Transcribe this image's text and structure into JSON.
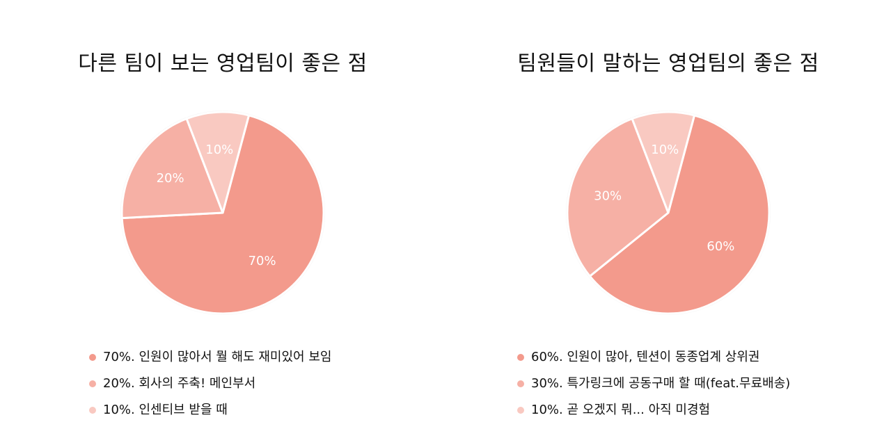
{
  "chart_data": [
    {
      "type": "pie",
      "title": "다른 팀이 보는 영업팀이 좋은 점",
      "categories": [
        "70%. 인원이 많아서 뭘 해도 재미있어 보임",
        "20%. 회사의 주축! 메인부서",
        "10%. 인센티브 받을 때"
      ],
      "values": [
        70,
        20,
        10
      ],
      "labels": [
        "70%",
        "20%",
        "10%"
      ],
      "colors": [
        "#f39a8c",
        "#f6b0a5",
        "#f9c9c1"
      ],
      "legend_position": "bottom"
    },
    {
      "type": "pie",
      "title": "팀원들이 말하는 영업팀의 좋은 점",
      "categories": [
        "60%. 인원이 많아, 텐션이 동종업계 상위권",
        "30%. 특가링크에 공동구매 할 때(feat.무료배송)",
        "10%. 곧 오겠지 뭐... 아직 미경험"
      ],
      "values": [
        60,
        30,
        10
      ],
      "labels": [
        "60%",
        "30%",
        "10%"
      ],
      "colors": [
        "#f39a8c",
        "#f6b0a5",
        "#f9c9c1"
      ],
      "legend_position": "bottom"
    }
  ]
}
